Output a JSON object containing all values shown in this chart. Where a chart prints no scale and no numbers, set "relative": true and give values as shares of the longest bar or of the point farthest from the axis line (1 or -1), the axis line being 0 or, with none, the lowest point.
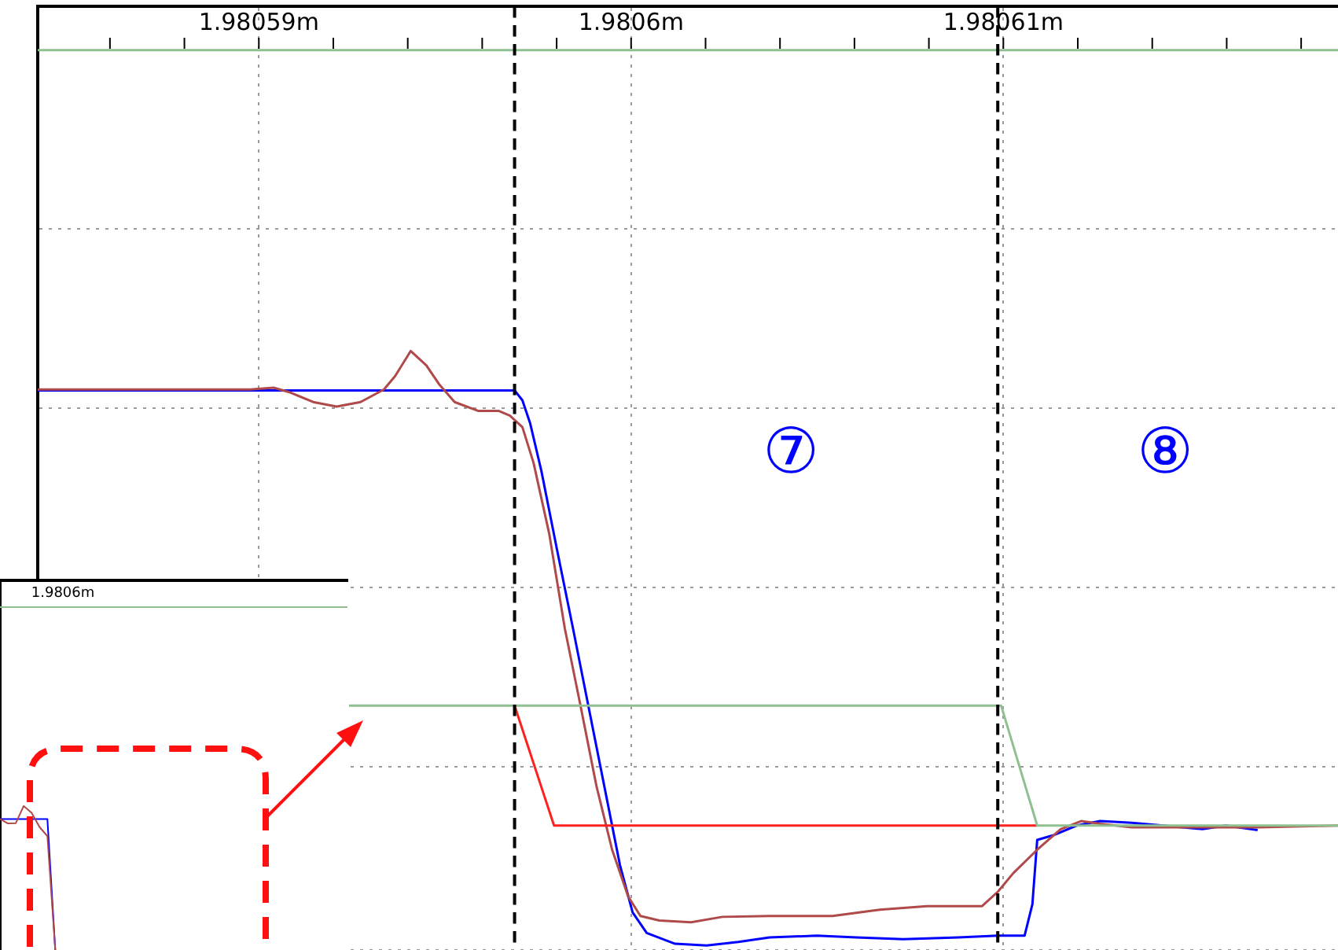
{
  "chart_data": [
    {
      "type": "line",
      "relative": true,
      "marker": "none",
      "line_style": "solid",
      "grid": true,
      "xlim": [
        1.98058406,
        1.98061899
      ],
      "xticks": [
        {
          "value": 1.980586,
          "label": null
        },
        {
          "value": 1.980588,
          "label": null
        },
        {
          "value": 1.98059,
          "label": "1.98059m"
        },
        {
          "value": 1.980592,
          "label": null
        },
        {
          "value": 1.980594,
          "label": null
        },
        {
          "value": 1.980596,
          "label": null
        },
        {
          "value": 1.980598,
          "label": null
        },
        {
          "value": 1.9806,
          "label": "1.9806m"
        },
        {
          "value": 1.980602,
          "label": null
        },
        {
          "value": 1.980604,
          "label": null
        },
        {
          "value": 1.980606,
          "label": null
        },
        {
          "value": 1.980608,
          "label": null
        },
        {
          "value": 1.98061,
          "label": "1.98061m"
        },
        {
          "value": 1.980612,
          "label": null
        },
        {
          "value": 1.980614,
          "label": null
        },
        {
          "value": 1.980616,
          "label": null
        },
        {
          "value": 1.980618,
          "label": null
        }
      ],
      "series": [
        {
          "color": "#8fc08f",
          "x": [
            1.98058406,
            1.98061899
          ],
          "values": [
            1.0,
            1.0
          ]
        },
        {
          "color": "#8fc08f",
          "x": [
            1.98059239,
            1.98060994,
            1.98061091,
            1.98061899
          ],
          "values": [
            0.268,
            0.268,
            0.134,
            0.134
          ]
        },
        {
          "color": "#ff2020",
          "x": [
            1.98059687,
            1.98059793,
            1.98061091
          ],
          "values": [
            0.268,
            0.134,
            0.134
          ]
        },
        {
          "color": "#b04a4a",
          "x": [
            1.98058406,
            1.98058977,
            1.9805904,
            1.98059082,
            1.98059146,
            1.98059209,
            1.98059273,
            1.98059336,
            1.98059366,
            1.98059408,
            1.9805945,
            1.98059484,
            1.98059526,
            1.9805959,
            1.98059645,
            1.98059674,
            1.98059708,
            1.98059738,
            1.9805978,
            1.98059822,
            1.98059865,
            1.98059907,
            1.98059949,
            1.98059992,
            1.98060025,
            1.98060076,
            1.98060161,
            1.98060245,
            1.98060372,
            1.98060541,
            1.98060668,
            1.98060795,
            1.98060943,
            1.98060985,
            1.98061027,
            1.98061091,
            1.98061154,
            1.98061209,
            1.9806126,
            1.98061345,
            1.98061514,
            1.98061683,
            1.98061899
          ],
          "values": [
            0.621,
            0.621,
            0.623,
            0.618,
            0.607,
            0.602,
            0.607,
            0.621,
            0.636,
            0.664,
            0.648,
            0.627,
            0.607,
            0.597,
            0.597,
            0.592,
            0.579,
            0.539,
            0.46,
            0.354,
            0.266,
            0.178,
            0.107,
            0.055,
            0.033,
            0.028,
            0.026,
            0.032,
            0.033,
            0.033,
            0.04,
            0.044,
            0.044,
            0.06,
            0.081,
            0.107,
            0.13,
            0.139,
            0.136,
            0.132,
            0.132,
            0.132,
            0.134
          ]
        },
        {
          "color": "#0000ff",
          "x": [
            1.98058406,
            1.98059687,
            1.98059708,
            1.98059729,
            1.98059759,
            1.98059801,
            1.98059844,
            1.98059886,
            1.98059928,
            1.9805997,
            1.98060004,
            1.98060042,
            1.98060118,
            1.98060203,
            1.98060288,
            1.98060372,
            1.98060499,
            1.98060605,
            1.98060731,
            1.98060879,
            1.98060985,
            1.98061057,
            1.98061078,
            1.98061091,
            1.98061133,
            1.98061197,
            1.9806126,
            1.98061345,
            1.98061429,
            1.98061535,
            1.98061598,
            1.98061683
          ],
          "values": [
            0.62,
            0.62,
            0.609,
            0.583,
            0.53,
            0.442,
            0.354,
            0.266,
            0.178,
            0.09,
            0.037,
            0.014,
            0.002,
            0,
            0.004,
            0.009,
            0.011,
            0.009,
            0.007,
            0.009,
            0.011,
            0.011,
            0.046,
            0.118,
            0.123,
            0.134,
            0.139,
            0.137,
            0.134,
            0.13,
            0.134,
            0.129
          ]
        }
      ],
      "ref_lines": [
        {
          "axis": "x",
          "value": 1.98059687,
          "color": "#000000",
          "line_style": "dashed"
        },
        {
          "axis": "x",
          "value": 1.98060985,
          "color": "#000000",
          "line_style": "dashed"
        }
      ],
      "annotations": [
        "⑦",
        "⑧"
      ]
    },
    {
      "type": "line",
      "relative": true,
      "marker": "none",
      "line_style": "solid",
      "annotations": [
        "1.9806m"
      ],
      "categories": [
        null,
        null,
        null,
        null,
        null,
        null,
        null,
        null,
        null,
        null,
        null,
        null,
        null,
        null,
        null,
        null,
        null,
        null,
        null,
        null,
        null,
        null,
        null,
        null,
        null,
        null,
        null,
        null,
        null,
        null,
        null,
        null,
        null,
        null,
        null,
        null,
        null,
        null,
        null,
        null,
        null,
        null,
        null,
        null,
        null
      ],
      "series": [
        {
          "color": "#8fc08f",
          "values": [
            1,
            1,
            1,
            1,
            1,
            1,
            1,
            1,
            1,
            1,
            1,
            1,
            1,
            1,
            1,
            1,
            1,
            1,
            1,
            1,
            1,
            1,
            1,
            1,
            1,
            1,
            1,
            1,
            1,
            1,
            1,
            1,
            1,
            1,
            1,
            1,
            1,
            1,
            1,
            1,
            1,
            1,
            1,
            1,
            1
          ]
        },
        {
          "color": "#b04a4a",
          "values": [
            0.382,
            0.369,
            0.37,
            0.42,
            0.4,
            0.359,
            0.332,
            0,
            null,
            null,
            null,
            null,
            null,
            null,
            null,
            null,
            null,
            null,
            null,
            null,
            null,
            null,
            null,
            null,
            null,
            null,
            null,
            null,
            null,
            null,
            null,
            null,
            null,
            null,
            null,
            null,
            null,
            null,
            null,
            null,
            null,
            null,
            null,
            null,
            null
          ]
        },
        {
          "color": "#0000ff",
          "values": [
            0.382,
            0.382,
            0.382,
            0.382,
            0.382,
            0.382,
            0.382,
            0,
            null,
            null,
            null,
            null,
            null,
            null,
            null,
            null,
            null,
            null,
            null,
            null,
            null,
            null,
            null,
            null,
            null,
            null,
            null,
            null,
            null,
            null,
            null,
            null,
            null,
            null,
            null,
            null,
            null,
            null,
            null,
            null,
            null,
            null,
            null,
            null,
            null
          ]
        }
      ]
    }
  ]
}
